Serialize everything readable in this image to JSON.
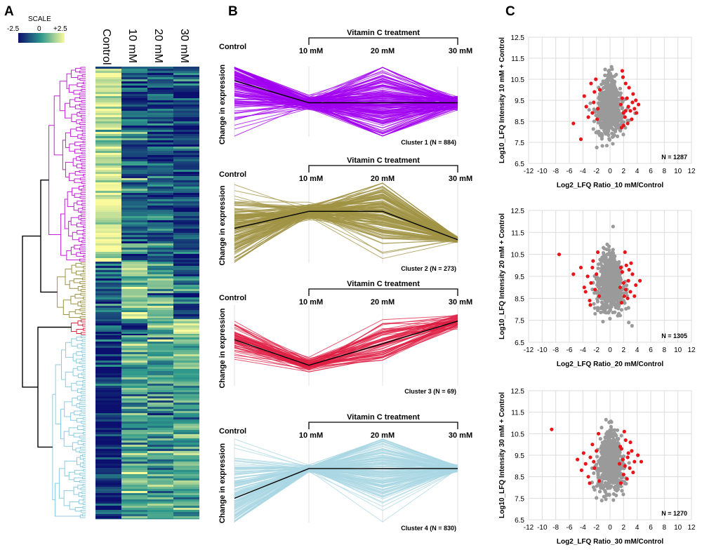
{
  "panels": {
    "a": "A",
    "b": "B",
    "c": "C"
  },
  "heatmap": {
    "scale_label": "SCALE",
    "scale_ticks": [
      "-2.5",
      "0",
      "+2.5"
    ],
    "columns": [
      "Control",
      "10 mM",
      "20 mM",
      "30 mM"
    ],
    "colors": {
      "low": "#0b0f6e",
      "mid": "#2f9a8c",
      "high": "#fbfa9c"
    }
  },
  "dendrogram": {
    "colors": [
      "#c21fd6",
      "#9c9344",
      "#e0253f",
      "#8ccbe0"
    ]
  },
  "chart_data": [
    {
      "type": "line",
      "title": "Vitamin C treatment",
      "ylabel": "Change in expression",
      "categories": [
        "Control",
        "10 mM",
        "20 mM",
        "30 mM"
      ],
      "cluster_label": "Cluster 1 (N = 884)",
      "color": "#a100f0",
      "centroid": [
        0.9,
        0.27,
        0.27,
        0.27
      ],
      "ylim": [
        -0.6,
        1.2
      ]
    },
    {
      "type": "line",
      "title": "Vitamin C treatment",
      "ylabel": "Change in expression",
      "categories": [
        "Control",
        "10 mM",
        "20 mM",
        "30 mM"
      ],
      "cluster_label": "Cluster 2 (N = 273)",
      "color": "#a09344",
      "centroid": [
        0.25,
        0.55,
        0.55,
        0.05
      ],
      "ylim": [
        -0.3,
        1.0
      ]
    },
    {
      "type": "line",
      "title": "Vitamin C treatment",
      "ylabel": "Change in expression",
      "categories": [
        "Control",
        "10 mM",
        "20 mM",
        "30 mM"
      ],
      "cluster_label": "Cluster 3 (N = 69)",
      "color": "#df1f44",
      "centroid": [
        0.55,
        0.1,
        0.48,
        0.88
      ],
      "ylim": [
        -0.2,
        1.1
      ]
    },
    {
      "type": "line",
      "title": "Vitamin C treatment",
      "ylabel": "Change in expression",
      "categories": [
        "Control",
        "10 mM",
        "20 mM",
        "30 mM"
      ],
      "cluster_label": "Cluster 4 (N = 830)",
      "color": "#a9d7e3",
      "centroid": [
        0.05,
        0.55,
        0.55,
        0.55
      ],
      "ylim": [
        -0.3,
        1.0
      ]
    },
    {
      "type": "scatter",
      "xlabel": "Log2_LFQ Ratio_10 mM/Control",
      "ylabel": "Log10_LFQ Intensity 10 mM + Control",
      "n_label": "N = 1287",
      "xlim": [
        -12,
        12
      ],
      "ylim": [
        6.5,
        12.5
      ],
      "xticks": [
        "-12",
        "-10",
        "-8",
        "-6",
        "-4",
        "-2",
        "0",
        "2",
        "4",
        "6",
        "8",
        "10",
        "12"
      ],
      "yticks": [
        "6.5",
        "7.5",
        "8.5",
        "9.5",
        "10.5",
        "11.5",
        "12.5"
      ],
      "colors": {
        "sig": "#e8161b",
        "ns": "#9a9a9a"
      },
      "red_points": [
        [
          -5.4,
          8.4
        ],
        [
          -4.3,
          7.65
        ],
        [
          -3.8,
          9.7
        ],
        [
          -3.5,
          9.2
        ],
        [
          -2.8,
          10.3
        ],
        [
          -2.4,
          9.4
        ],
        [
          -2.1,
          10.5
        ],
        [
          -1.8,
          9.1
        ],
        [
          -2.6,
          8.9
        ],
        [
          1.6,
          9.3
        ],
        [
          1.9,
          10.6
        ],
        [
          2.2,
          8.7
        ],
        [
          2.5,
          9.6
        ],
        [
          2.8,
          10.1
        ],
        [
          3.0,
          9.0
        ],
        [
          3.3,
          9.4
        ],
        [
          3.6,
          9.1
        ],
        [
          3.2,
          8.6
        ],
        [
          2.0,
          8.9
        ],
        [
          1.8,
          10.9
        ],
        [
          4.2,
          9.3
        ],
        [
          3.9,
          8.9
        ],
        [
          2.6,
          8.4
        ],
        [
          2.3,
          10.3
        ],
        [
          -1.5,
          10.0
        ],
        [
          -1.9,
          8.6
        ],
        [
          1.7,
          8.2
        ],
        [
          3.4,
          9.8
        ],
        [
          2.7,
          9.2
        ],
        [
          -3.2,
          8.7
        ],
        [
          2.3,
          9.0
        ],
        [
          3.8,
          9.5
        ],
        [
          1.8,
          9.6
        ],
        [
          -2.3,
          9.9
        ],
        [
          2.0,
          8.3
        ]
      ]
    },
    {
      "type": "scatter",
      "xlabel": "Log2_LFQ Ratio_20 mM/Control",
      "ylabel": "Log10_LFQ Intensity 20 mM + Control",
      "n_label": "N = 1305",
      "xlim": [
        -12,
        12
      ],
      "ylim": [
        6.5,
        12.5
      ],
      "xticks": [
        "-12",
        "-10",
        "-8",
        "-6",
        "-4",
        "-2",
        "0",
        "2",
        "4",
        "6",
        "8",
        "10",
        "12"
      ],
      "yticks": [
        "6.5",
        "7.5",
        "8.5",
        "9.5",
        "10.5",
        "11.5",
        "12.5"
      ],
      "colors": {
        "sig": "#e8161b",
        "ns": "#9a9a9a"
      },
      "red_points": [
        [
          -7.5,
          10.5
        ],
        [
          -5.4,
          9.6
        ],
        [
          -4.3,
          9.9
        ],
        [
          -3.6,
          8.8
        ],
        [
          -3.3,
          9.5
        ],
        [
          -3.0,
          8.4
        ],
        [
          -2.8,
          9.2
        ],
        [
          -2.5,
          10.2
        ],
        [
          -2.2,
          8.9
        ],
        [
          -2.0,
          9.6
        ],
        [
          -1.8,
          10.6
        ],
        [
          -1.6,
          8.6
        ],
        [
          -2.6,
          9.9
        ],
        [
          -3.8,
          9.0
        ],
        [
          -2.9,
          8.2
        ],
        [
          1.5,
          9.0
        ],
        [
          1.8,
          9.7
        ],
        [
          2.1,
          8.6
        ],
        [
          2.4,
          10.0
        ],
        [
          2.7,
          9.3
        ],
        [
          3.0,
          8.8
        ],
        [
          3.3,
          9.6
        ],
        [
          3.8,
          9.1
        ],
        [
          4.4,
          9.3
        ],
        [
          2.2,
          10.6
        ],
        [
          1.7,
          8.3
        ],
        [
          2.6,
          8.5
        ],
        [
          3.1,
          10.1
        ],
        [
          2.0,
          9.2
        ],
        [
          3.6,
          8.6
        ],
        [
          1.6,
          9.9
        ],
        [
          2.8,
          9.8
        ],
        [
          2.3,
          8.9
        ]
      ]
    },
    {
      "type": "scatter",
      "xlabel": "Log2_LFQ Ratio_30 mM/Control",
      "ylabel": "Log10_LFQ Intensity 30 mM + Control",
      "n_label": "N = 1270",
      "xlim": [
        -12,
        12
      ],
      "ylim": [
        6.5,
        12.5
      ],
      "xticks": [
        "-12",
        "-10",
        "-8",
        "-6",
        "-4",
        "-2",
        "0",
        "2",
        "4",
        "6",
        "8",
        "10",
        "12"
      ],
      "yticks": [
        "6.5",
        "7.5",
        "8.5",
        "9.5",
        "10.5",
        "11.5",
        "12.5"
      ],
      "colors": {
        "sig": "#e8161b",
        "ns": "#9a9a9a"
      },
      "red_points": [
        [
          -8.6,
          10.7
        ],
        [
          -4.8,
          9.3
        ],
        [
          -4.2,
          8.8
        ],
        [
          -3.9,
          9.6
        ],
        [
          -3.6,
          9.1
        ],
        [
          -3.2,
          8.5
        ],
        [
          -2.9,
          9.4
        ],
        [
          -2.6,
          10.0
        ],
        [
          -2.3,
          8.9
        ],
        [
          -2.0,
          9.7
        ],
        [
          -1.7,
          10.5
        ],
        [
          -1.6,
          8.3
        ],
        [
          -2.4,
          9.2
        ],
        [
          -3.0,
          8.2
        ],
        [
          1.4,
          9.1
        ],
        [
          1.7,
          9.8
        ],
        [
          2.0,
          8.6
        ],
        [
          2.3,
          10.2
        ],
        [
          2.6,
          9.4
        ],
        [
          2.9,
          8.9
        ],
        [
          3.2,
          9.7
        ],
        [
          3.6,
          9.2
        ],
        [
          4.1,
          9.5
        ],
        [
          4.6,
          9.2
        ],
        [
          2.1,
          10.6
        ],
        [
          1.6,
          8.2
        ],
        [
          2.5,
          8.4
        ],
        [
          3.0,
          10.1
        ],
        [
          1.9,
          9.3
        ],
        [
          3.4,
          8.7
        ],
        [
          1.5,
          9.9
        ],
        [
          2.7,
          9.6
        ],
        [
          2.2,
          9.0
        ]
      ]
    }
  ]
}
